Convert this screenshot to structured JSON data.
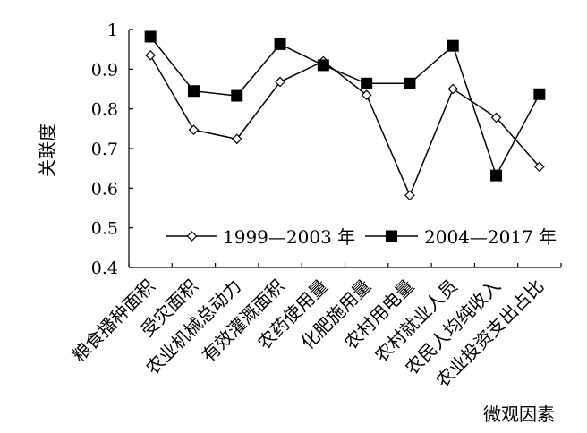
{
  "chart_data": {
    "type": "line",
    "xlabel": "微观因素",
    "ylabel": "关联度",
    "ylim": [
      0.4,
      1.0
    ],
    "yticks": [
      "0.4",
      "0.5",
      "0.6",
      "0.7",
      "0.8",
      "0.9",
      "1"
    ],
    "categories": [
      "粮食播种面积",
      "受灾面积",
      "农业机械总动力",
      "有效灌溉面积",
      "农药使用量",
      "化肥施用量",
      "农村用电量",
      "农村就业人员",
      "农民人均纯收入",
      "农业投资支出占比"
    ],
    "series": [
      {
        "name": "1999—2003 年",
        "marker": "diamond-open",
        "color": "#000000",
        "values": [
          0.935,
          0.747,
          0.724,
          0.868,
          0.92,
          0.835,
          0.582,
          0.85,
          0.778,
          0.654
        ]
      },
      {
        "name": "2004—2017 年",
        "marker": "square-filled",
        "color": "#000000",
        "values": [
          0.982,
          0.845,
          0.833,
          0.963,
          0.91,
          0.864,
          0.864,
          0.959,
          0.632,
          0.837
        ]
      }
    ],
    "legend_position": "inside-bottom",
    "grid": false
  }
}
